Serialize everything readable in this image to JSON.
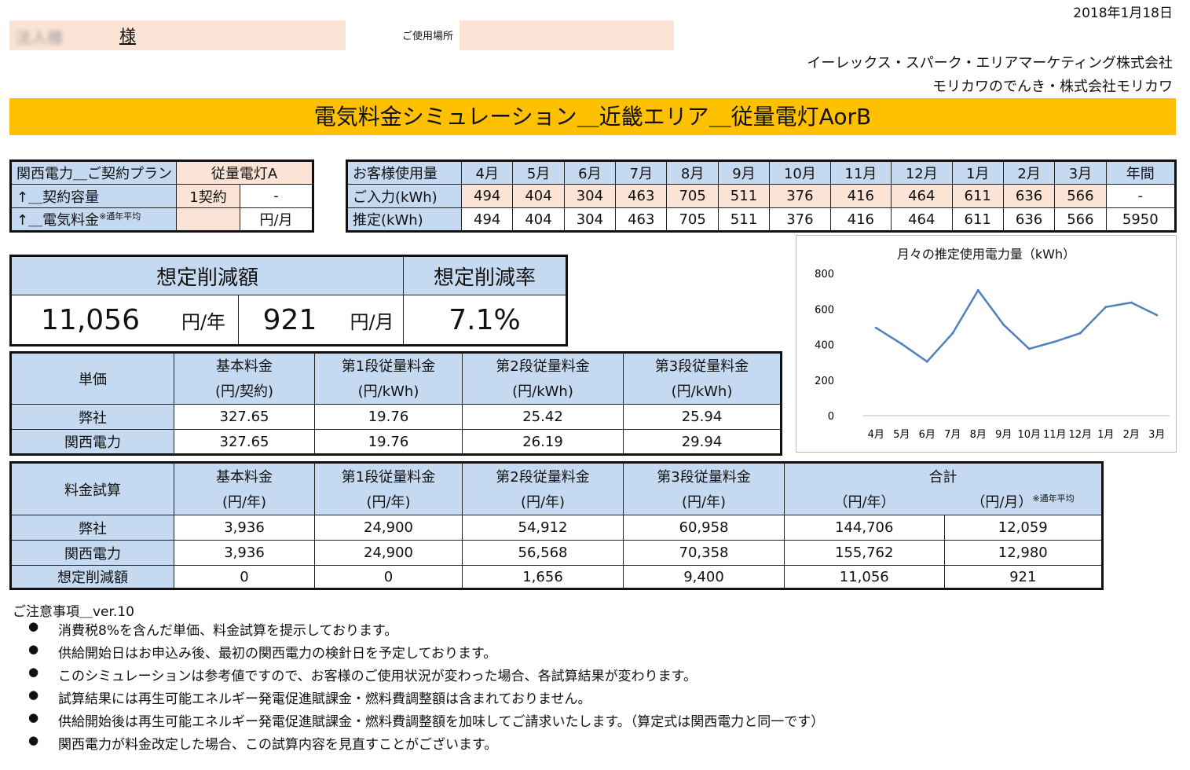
{
  "header": {
    "date": "2018年1月18日",
    "customer_name_blurred": "法人様",
    "sama": "様",
    "location_label": "ご使用場所",
    "company1": "イーレックス・スパーク・エリアマーケティング株式会社",
    "company2": "モリカワのでんき・株式会社モリカワ",
    "title": "電気料金シミュレーション＿近畿エリア＿従量電灯AorB"
  },
  "contract": {
    "r1_label": "関西電力＿ご契約プラン",
    "r1_value": "従量電灯A",
    "r2_label": "↑＿契約容量",
    "r2_value1": "1契約",
    "r2_value2": "-",
    "r3_label": "↑＿電気料金",
    "r3_note": "※通年平均",
    "r3_value": "円/月"
  },
  "usage": {
    "header_label": "お客様使用量",
    "months": [
      "4月",
      "5月",
      "6月",
      "7月",
      "8月",
      "9月",
      "10月",
      "11月",
      "12月",
      "1月",
      "2月",
      "3月",
      "年間"
    ],
    "input_label": "ご入力(kWh)",
    "input_values": [
      "494",
      "404",
      "304",
      "463",
      "705",
      "511",
      "376",
      "416",
      "464",
      "611",
      "636",
      "566",
      "-"
    ],
    "est_label": "推定(kWh)",
    "est_values": [
      "494",
      "404",
      "304",
      "463",
      "705",
      "511",
      "376",
      "416",
      "464",
      "611",
      "636",
      "566",
      "5950"
    ]
  },
  "savings": {
    "amount_label": "想定削減額",
    "rate_label": "想定削減率",
    "yearly": "11,056",
    "yearly_unit": "円/年",
    "monthly": "921",
    "monthly_unit": "円/月",
    "rate": "7.1%"
  },
  "unit_price": {
    "label": "単価",
    "headers": [
      "基本料金",
      "第1段従量料金",
      "第2段従量料金",
      "第3段従量料金"
    ],
    "units": [
      "(円/契約)",
      "(円/kWh)",
      "(円/kWh)",
      "(円/kWh)"
    ],
    "rows": [
      {
        "name": "弊社",
        "values": [
          "327.65",
          "19.76",
          "25.42",
          "25.94"
        ]
      },
      {
        "name": "関西電力",
        "values": [
          "327.65",
          "19.76",
          "26.19",
          "29.94"
        ]
      }
    ]
  },
  "calc": {
    "label": "料金試算",
    "headers": [
      "基本料金",
      "第1段従量料金",
      "第2段従量料金",
      "第3段従量料金"
    ],
    "units": [
      "(円/年)",
      "(円/年)",
      "(円/年)",
      "(円/年)"
    ],
    "total_label": "合計",
    "total_unit1": "（円/年）",
    "total_unit2": "（円/月）",
    "total_note": "※通年平均",
    "rows": [
      {
        "name": "弊社",
        "values": [
          "3,936",
          "24,900",
          "54,912",
          "60,958",
          "144,706",
          "12,059"
        ]
      },
      {
        "name": "関西電力",
        "values": [
          "3,936",
          "24,900",
          "56,568",
          "70,358",
          "155,762",
          "12,980"
        ]
      },
      {
        "name": "想定削減額",
        "values": [
          "0",
          "0",
          "1,656",
          "9,400",
          "11,056",
          "921"
        ]
      }
    ]
  },
  "notes": {
    "title": "ご注意事項＿ver.10",
    "items": [
      "消費税8%を含んだ単価、料金試算を提示しております。",
      "供給開始日はお申込み後、最初の関西電力の検針日を予定しております。",
      "このシミュレーションは参考値ですので、お客様のご使用状況が変わった場合、各試算結果が変わります。",
      "試算結果には再生可能エネルギー発電促進賦課金・燃料費調整額は含まれておりません。",
      "供給開始後は再生可能エネルギー発電促進賦課金・燃料費調整額を加味してご請求いたします。（算定式は関西電力と同一です）",
      "関西電力が料金改定した場合、この試算内容を見直すことがございます。"
    ]
  },
  "chart_data": {
    "type": "line",
    "title": "月々の推定使用電力量（kWh）",
    "categories": [
      "4月",
      "5月",
      "6月",
      "7月",
      "8月",
      "9月",
      "10月",
      "11月",
      "12月",
      "1月",
      "2月",
      "3月"
    ],
    "series": [
      {
        "values": [
          494,
          404,
          304,
          463,
          705,
          511,
          376,
          416,
          464,
          611,
          636,
          566
        ]
      }
    ],
    "ylim": [
      0,
      800
    ],
    "yticks": [
      "0",
      "200",
      "400",
      "600",
      "800"
    ],
    "color": "#4f81bd",
    "grid": false
  }
}
